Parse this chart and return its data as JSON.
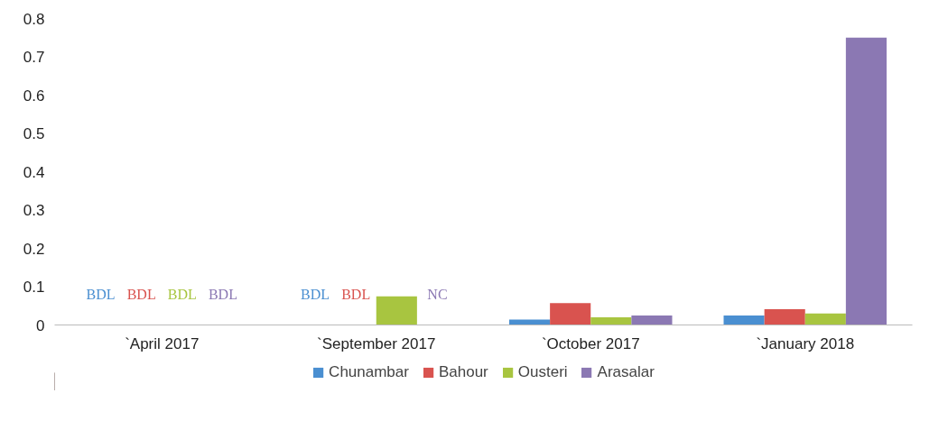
{
  "chart_data": {
    "type": "bar",
    "categories": [
      "`April 2017",
      "`September 2017",
      "`October 2017",
      "`January 2018"
    ],
    "series": [
      {
        "name": "Chunambar",
        "color": "#4a8fd1",
        "values": [
          null,
          null,
          0.014,
          0.025
        ],
        "value_labels": [
          "BDL",
          "BDL",
          null,
          null
        ]
      },
      {
        "name": "Bahour",
        "color": "#d9534f",
        "values": [
          null,
          null,
          0.057,
          0.041
        ],
        "value_labels": [
          "BDL",
          "BDL",
          null,
          null
        ]
      },
      {
        "name": "Ousteri",
        "color": "#a8c540",
        "values": [
          null,
          0.075,
          0.02,
          0.03
        ],
        "value_labels": [
          "BDL",
          null,
          null,
          null
        ]
      },
      {
        "name": "Arasalar",
        "color": "#8b78b3",
        "values": [
          null,
          null,
          0.025,
          0.75
        ],
        "value_labels": [
          "BDL",
          "NC",
          null,
          null
        ]
      }
    ],
    "ylim": [
      0,
      0.8
    ],
    "yticks": [
      0,
      0.1,
      0.2,
      0.3,
      0.4,
      0.5,
      0.6,
      0.7,
      0.8
    ],
    "grid": false,
    "legend": "bottom"
  }
}
